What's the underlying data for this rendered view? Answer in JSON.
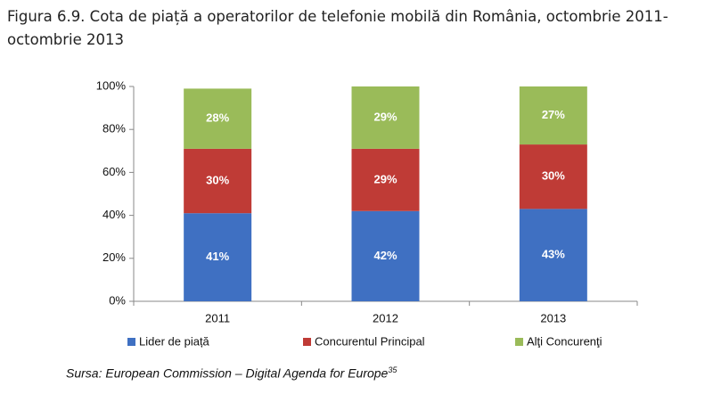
{
  "chart_data": {
    "type": "stacked_bar",
    "title": "Figura 6.9. Cota de piață a operatorilor de telefonie mobilă din România, octombrie 2011-octombrie 2013",
    "categories": [
      "2011",
      "2012",
      "2013"
    ],
    "series": [
      {
        "name": "Lider de piață",
        "color": "#3f70c2",
        "values": [
          41,
          42,
          43
        ],
        "value_labels": [
          "41%",
          "42%",
          "43%"
        ]
      },
      {
        "name": "Concurentul Principal",
        "color": "#bf3b36",
        "values": [
          30,
          29,
          30
        ],
        "value_labels": [
          "30%",
          "29%",
          "30%"
        ]
      },
      {
        "name": "Alţi Concurenţi",
        "color": "#9abb59",
        "values": [
          28,
          29,
          27
        ],
        "value_labels": [
          "28%",
          "29%",
          "27%"
        ]
      }
    ],
    "ylim": [
      0,
      100
    ],
    "yticks": [
      {
        "value": 0,
        "label": "0%"
      },
      {
        "value": 20,
        "label": "20%"
      },
      {
        "value": 40,
        "label": "40%"
      },
      {
        "value": 60,
        "label": "60%"
      },
      {
        "value": 80,
        "label": "80%"
      },
      {
        "value": 100,
        "label": "100%"
      }
    ],
    "legend": "bottom",
    "source": "Sursa: European Commission – Digital Agenda for Europe",
    "source_note": "35"
  }
}
